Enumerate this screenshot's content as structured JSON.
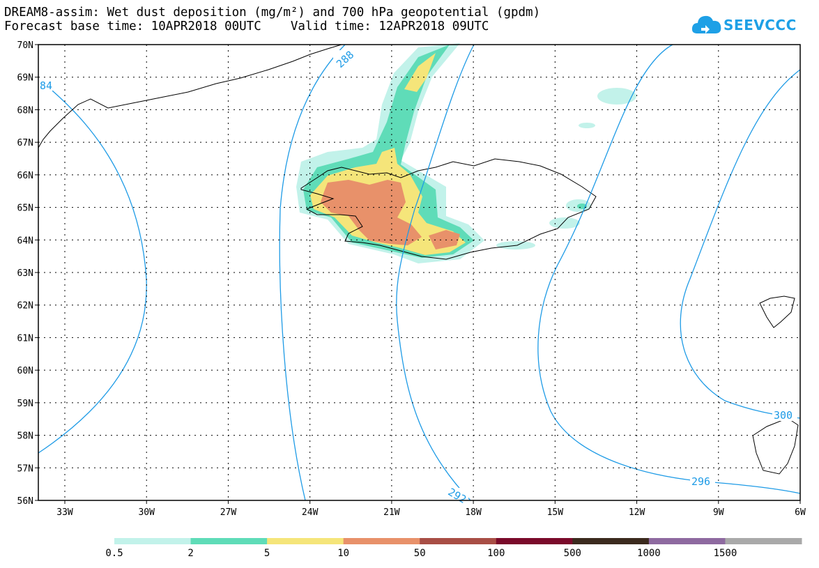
{
  "title": {
    "line1": "DREAM8-assim: Wet dust deposition (mg/m²) and 700 hPa geopotential (gpdm)",
    "line2": "Forecast base time: 10APR2018 00UTC    Valid time: 12APR2018 09UTC"
  },
  "logo": {
    "text": "SEEVCCC",
    "color": "#1ea0e6"
  },
  "axes": {
    "lat_labels": [
      "70N",
      "69N",
      "68N",
      "67N",
      "66N",
      "65N",
      "64N",
      "63N",
      "62N",
      "61N",
      "60N",
      "59N",
      "58N",
      "57N",
      "56N"
    ],
    "lon_labels": [
      "33W",
      "30W",
      "27W",
      "24W",
      "21W",
      "18W",
      "15W",
      "12W",
      "9W",
      "6W"
    ]
  },
  "contours": {
    "color": "#1e9be6",
    "labels": [
      "84",
      "288",
      "292",
      "296",
      "300"
    ]
  },
  "colorbar": {
    "colors": [
      "#c2f2ea",
      "#5fdcb8",
      "#f5e57a",
      "#e8916a",
      "#a84e45",
      "#7a0a2a",
      "#3b2a1e",
      "#8e6aa0",
      "#a9a9a9"
    ],
    "labels": [
      "0.5",
      "2",
      "5",
      "10",
      "50",
      "100",
      "500",
      "1000",
      "1500"
    ]
  }
}
